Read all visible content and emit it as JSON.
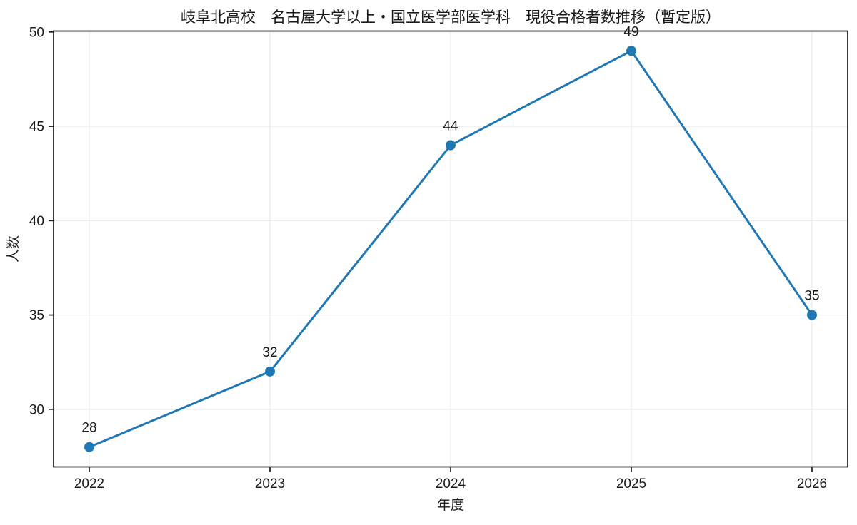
{
  "chart_data": {
    "type": "line",
    "title": "岐阜北高校　名古屋大学以上・国立医学部医学科　現役合格者数推移（暫定版）",
    "xlabel": "年度",
    "ylabel": "人数",
    "x": [
      2022,
      2023,
      2024,
      2025,
      2026
    ],
    "xtick_labels": [
      "2022",
      "2023",
      "2024",
      "2025",
      "2026"
    ],
    "series": [
      {
        "name": "現役合格者数",
        "values": [
          28,
          32,
          44,
          49,
          35
        ]
      }
    ],
    "point_labels": [
      "28",
      "32",
      "44",
      "49",
      "35"
    ],
    "yticks": [
      30,
      35,
      40,
      45,
      50
    ],
    "ytick_labels": [
      "30",
      "35",
      "40",
      "45",
      "50"
    ],
    "ylim": [
      26.95,
      50.05
    ],
    "grid": true,
    "legend": "none",
    "colors": {
      "line": "#1f77b4",
      "marker": "#1f77b4",
      "grid": "#e7e7e7",
      "axis": "#1a1a1a",
      "background": "#ffffff"
    }
  }
}
